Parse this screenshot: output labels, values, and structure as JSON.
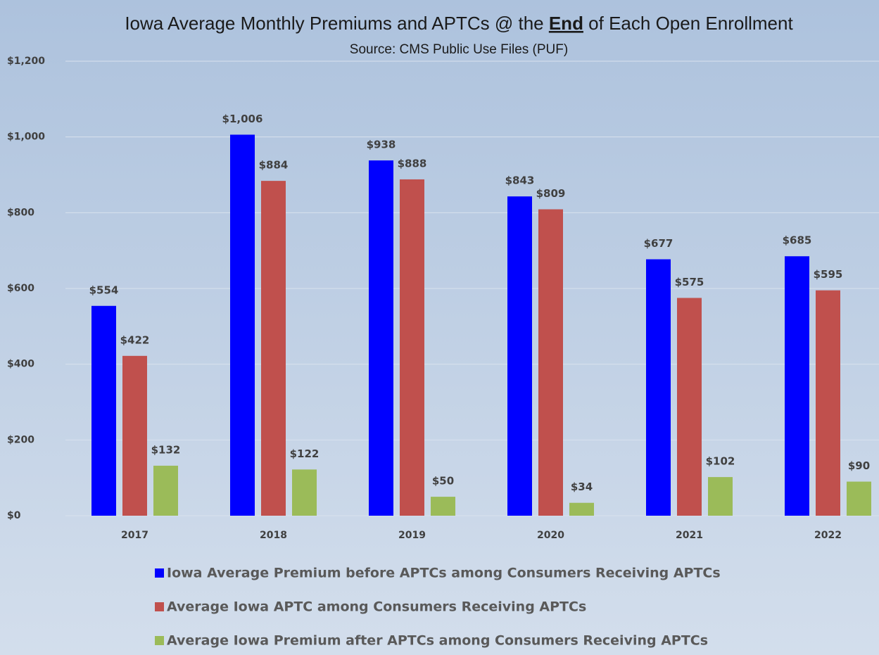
{
  "chart_data": {
    "type": "bar",
    "title": [
      "Iowa Average Monthly Premiums and APTCs @ the ",
      "End",
      " of Each Open Enrollment"
    ],
    "subtitle": "Source:  CMS Public Use Files (PUF)",
    "categories": [
      "2017",
      "2018",
      "2019",
      "2020",
      "2021",
      "2022"
    ],
    "series": [
      {
        "name": "Iowa Average Premium before APTCs among Consumers Receiving APTCs",
        "color": "#0000ff",
        "values": [
          554,
          1006,
          938,
          843,
          677,
          685
        ],
        "value_labels": [
          "$554",
          "$1,006",
          "$938",
          "$843",
          "$677",
          "$685"
        ]
      },
      {
        "name": "Average Iowa APTC among Consumers Receiving APTCs",
        "color": "#c0504d",
        "values": [
          422,
          884,
          888,
          809,
          575,
          595
        ],
        "value_labels": [
          "$422",
          "$884",
          "$888",
          "$809",
          "$575",
          "$595"
        ]
      },
      {
        "name": "Average Iowa Premium after APTCs among Consumers Receiving APTCs",
        "color": "#9bbb59",
        "values": [
          132,
          122,
          50,
          34,
          102,
          90
        ],
        "value_labels": [
          "$132",
          "$122",
          "$50",
          "$34",
          "$102",
          "$90"
        ]
      }
    ],
    "ylim": [
      0,
      1200
    ],
    "yticks": [
      {
        "value": 0,
        "label": "$0"
      },
      {
        "value": 200,
        "label": "$200"
      },
      {
        "value": 400,
        "label": "$400"
      },
      {
        "value": 600,
        "label": "$600"
      },
      {
        "value": 800,
        "label": "$800"
      },
      {
        "value": 1000,
        "label": "$1,000"
      },
      {
        "value": 1200,
        "label": "$1,200"
      }
    ],
    "grid": true,
    "legend": "bottom"
  }
}
